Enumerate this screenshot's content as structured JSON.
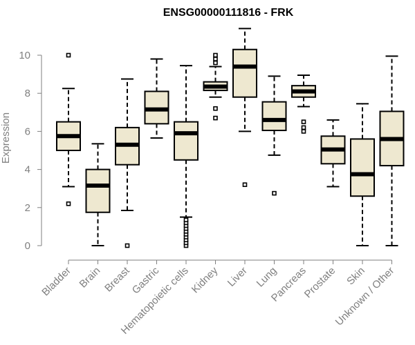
{
  "chart_data": {
    "type": "boxplot",
    "title": "ENSG00000111816 - FRK",
    "xlabel": "",
    "ylabel": "Expression",
    "ylim": [
      0,
      10.5
    ],
    "yticks": [
      0,
      2,
      4,
      6,
      8,
      10
    ],
    "box_color": "#eee8d0",
    "categories": [
      "Bladder",
      "Brain",
      "Breast",
      "Gastric",
      "Hematopoietic cells",
      "Kidney",
      "Liver",
      "Lung",
      "Pancreas",
      "Prostate",
      "Skin",
      "Unknown / Other"
    ],
    "boxes": [
      {
        "name": "Bladder",
        "whisker_low": 3.1,
        "q1": 5.0,
        "median": 5.75,
        "q3": 6.5,
        "whisker_high": 8.25,
        "outliers": [
          2.2,
          10.0
        ]
      },
      {
        "name": "Brain",
        "whisker_low": 0.0,
        "q1": 1.75,
        "median": 3.15,
        "q3": 4.0,
        "whisker_high": 5.35,
        "outliers": []
      },
      {
        "name": "Breast",
        "whisker_low": 1.85,
        "q1": 4.25,
        "median": 5.3,
        "q3": 6.2,
        "whisker_high": 8.75,
        "outliers": [
          0.0
        ]
      },
      {
        "name": "Gastric",
        "whisker_low": 5.65,
        "q1": 6.4,
        "median": 7.15,
        "q3": 8.1,
        "whisker_high": 9.8,
        "outliers": []
      },
      {
        "name": "Hematopoietic cells",
        "whisker_low": 1.5,
        "q1": 4.5,
        "median": 5.9,
        "q3": 6.5,
        "whisker_high": 9.45,
        "outliers": [
          0.0,
          0.15,
          0.3,
          0.45,
          0.6,
          0.75,
          0.9,
          1.05,
          1.2,
          1.35
        ]
      },
      {
        "name": "Kidney",
        "whisker_low": 7.8,
        "q1": 8.15,
        "median": 8.35,
        "q3": 8.6,
        "whisker_high": 9.4,
        "outliers": [
          6.7,
          7.2,
          9.6,
          9.8,
          10.0
        ]
      },
      {
        "name": "Liver",
        "whisker_low": 6.0,
        "q1": 7.8,
        "median": 9.4,
        "q3": 10.3,
        "whisker_high": 11.4,
        "outliers": [
          3.2
        ]
      },
      {
        "name": "Lung",
        "whisker_low": 4.75,
        "q1": 6.05,
        "median": 6.6,
        "q3": 7.55,
        "whisker_high": 8.9,
        "outliers": [
          2.75
        ]
      },
      {
        "name": "Pancreas",
        "whisker_low": 7.3,
        "q1": 7.8,
        "median": 8.1,
        "q3": 8.4,
        "whisker_high": 8.95,
        "outliers": [
          6.0,
          6.2,
          6.5
        ]
      },
      {
        "name": "Prostate",
        "whisker_low": 3.1,
        "q1": 4.3,
        "median": 5.05,
        "q3": 5.75,
        "whisker_high": 6.6,
        "outliers": []
      },
      {
        "name": "Skin",
        "whisker_low": 0.0,
        "q1": 2.6,
        "median": 3.75,
        "q3": 5.6,
        "whisker_high": 7.45,
        "outliers": []
      },
      {
        "name": "Unknown / Other",
        "whisker_low": 0.0,
        "q1": 4.2,
        "median": 5.6,
        "q3": 7.05,
        "whisker_high": 9.95,
        "outliers": []
      }
    ]
  }
}
